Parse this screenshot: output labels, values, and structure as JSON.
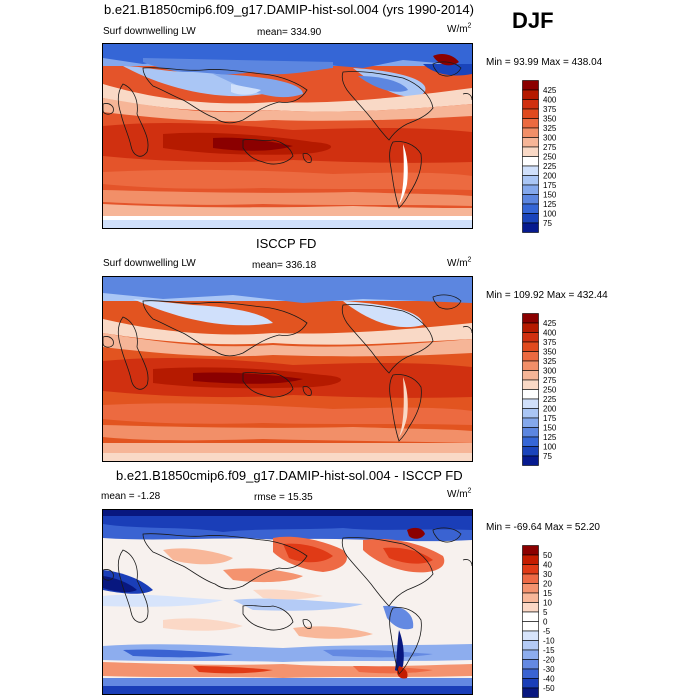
{
  "season": "DJF",
  "panels": [
    {
      "title": "b.e21.B1850cmip6.f09_g17.DAMIP-hist-sol.004 (yrs 1990-2014)",
      "left_label": "Surf downwelling LW",
      "center_label": "mean= 334.90",
      "units_label": "W/m",
      "units_sup": "2",
      "minmax_label": "Min =  93.99 Max = 438.04",
      "colorbar_ticks": [
        "425",
        "400",
        "375",
        "350",
        "325",
        "300",
        "275",
        "250",
        "225",
        "200",
        "175",
        "150",
        "125",
        "100",
        "75"
      ]
    },
    {
      "title": "ISCCP FD",
      "left_label": "Surf downwelling LW",
      "center_label": "mean= 336.18",
      "units_label": "W/m",
      "units_sup": "2",
      "minmax_label": "Min = 109.92 Max = 432.44",
      "colorbar_ticks": [
        "425",
        "400",
        "375",
        "350",
        "325",
        "300",
        "275",
        "250",
        "225",
        "200",
        "175",
        "150",
        "125",
        "100",
        "75"
      ]
    },
    {
      "title": "b.e21.B1850cmip6.f09_g17.DAMIP-hist-sol.004 - ISCCP FD",
      "left_label": "mean =  -1.28",
      "center_label": "rmse =  15.35",
      "units_label": "W/m",
      "units_sup": "2",
      "minmax_label": "Min = -69.64 Max =  52.20",
      "colorbar_ticks": [
        "50",
        "40",
        "30",
        "20",
        "15",
        "10",
        "5",
        "0",
        "-5",
        "-10",
        "-15",
        "-20",
        "-30",
        "-40",
        "-50"
      ]
    }
  ],
  "colors": {
    "abs_scale": [
      "#8b0000",
      "#b51a00",
      "#d03010",
      "#e04a1e",
      "#ec6a40",
      "#f28f68",
      "#f6b597",
      "#f9d9c6",
      "#ffffff",
      "#d0e0fb",
      "#aac6f5",
      "#84a8ec",
      "#5c86e0",
      "#3566d6",
      "#1a44bb",
      "#061a8f"
    ],
    "diff_scale": [
      "#8b0000",
      "#c41c00",
      "#e03a16",
      "#ee6a45",
      "#f4936f",
      "#f8b799",
      "#fbd8c6",
      "#ffffff",
      "#ffffff",
      "#d7e4fb",
      "#b4cbf6",
      "#8dadee",
      "#6489e2",
      "#3a63d2",
      "#1a3eb8",
      "#08177f"
    ],
    "coastline": "#1a1a1a",
    "ocean_model_mid": "#e04a1e",
    "ocean_obs_mid": "#e25420",
    "diff_neutral": "#f7f1ee"
  },
  "chart_data": [
    {
      "type": "heatmap",
      "title": "b.e21.B1850cmip6.f09_g17.DAMIP-hist-sol.004 (yrs 1990-2014)",
      "variable": "Surf downwelling LW",
      "units": "W/m2",
      "season": "DJF",
      "mean": 334.9,
      "min": 93.99,
      "max": 438.04,
      "contour_levels": [
        75,
        100,
        125,
        150,
        175,
        200,
        225,
        250,
        275,
        300,
        325,
        350,
        375,
        400,
        425
      ]
    },
    {
      "type": "heatmap",
      "title": "ISCCP FD",
      "variable": "Surf downwelling LW",
      "units": "W/m2",
      "season": "DJF",
      "mean": 336.18,
      "min": 109.92,
      "max": 432.44,
      "contour_levels": [
        75,
        100,
        125,
        150,
        175,
        200,
        225,
        250,
        275,
        300,
        325,
        350,
        375,
        400,
        425
      ]
    },
    {
      "type": "heatmap",
      "title": "b.e21.B1850cmip6.f09_g17.DAMIP-hist-sol.004 - ISCCP FD",
      "units": "W/m2",
      "season": "DJF",
      "mean": -1.28,
      "rmse": 15.35,
      "min": -69.64,
      "max": 52.2,
      "contour_levels": [
        -50,
        -40,
        -30,
        -20,
        -15,
        -10,
        -5,
        0,
        5,
        10,
        15,
        20,
        30,
        40,
        50
      ]
    }
  ]
}
